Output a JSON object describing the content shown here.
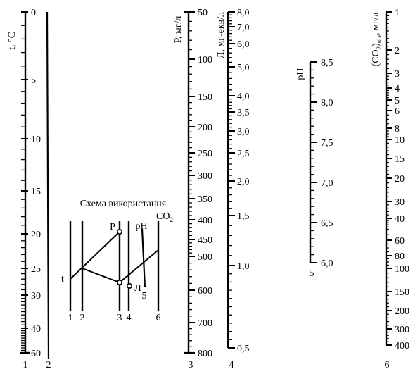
{
  "scales": {
    "t": {
      "number": "1",
      "label": "t, °C",
      "ticks": [
        "0",
        "5",
        "10",
        "15",
        "20",
        "25",
        "30",
        "40",
        "60"
      ]
    },
    "aux": {
      "number": "2"
    },
    "P": {
      "number": "3",
      "label": "P, мг/л",
      "ticks": [
        "50",
        "100",
        "150",
        "200",
        "250",
        "300",
        "350",
        "400",
        "450",
        "500",
        "600",
        "700",
        "800"
      ]
    },
    "L": {
      "number": "4",
      "label": "Л, мг-екв/л",
      "ticks": [
        "8,0",
        "7,0",
        "6,0",
        "5,0",
        "4,0",
        "3,5",
        "3,0",
        "2,5",
        "2,0",
        "1,5",
        "1,0",
        "0,5"
      ]
    },
    "pH": {
      "number": "5",
      "label": "pH",
      "ticks": [
        "8,5",
        "8,0",
        "7,5",
        "7,0",
        "6,5",
        "6,0"
      ]
    },
    "CO2": {
      "number": "6",
      "label_main": "(CO",
      "label_sub1": "2",
      "label_close": ")",
      "label_sub2": "віл",
      "label_unit": ", мг/л",
      "ticks": [
        "1",
        "2",
        "3",
        "4",
        "5",
        "6",
        "8",
        "10",
        "15",
        "20",
        "30",
        "40",
        "60",
        "80",
        "100",
        "150",
        "200",
        "300",
        "400"
      ]
    }
  },
  "inset": {
    "title": "Схема використання",
    "label_t": "t",
    "label_P": "P",
    "label_pH": "pH",
    "label_CO2_main": "CO",
    "label_CO2_sub": "2",
    "label_L": "Л",
    "label_5": "5",
    "axis_numbers": [
      "1",
      "2",
      "3",
      "4",
      "6"
    ]
  }
}
